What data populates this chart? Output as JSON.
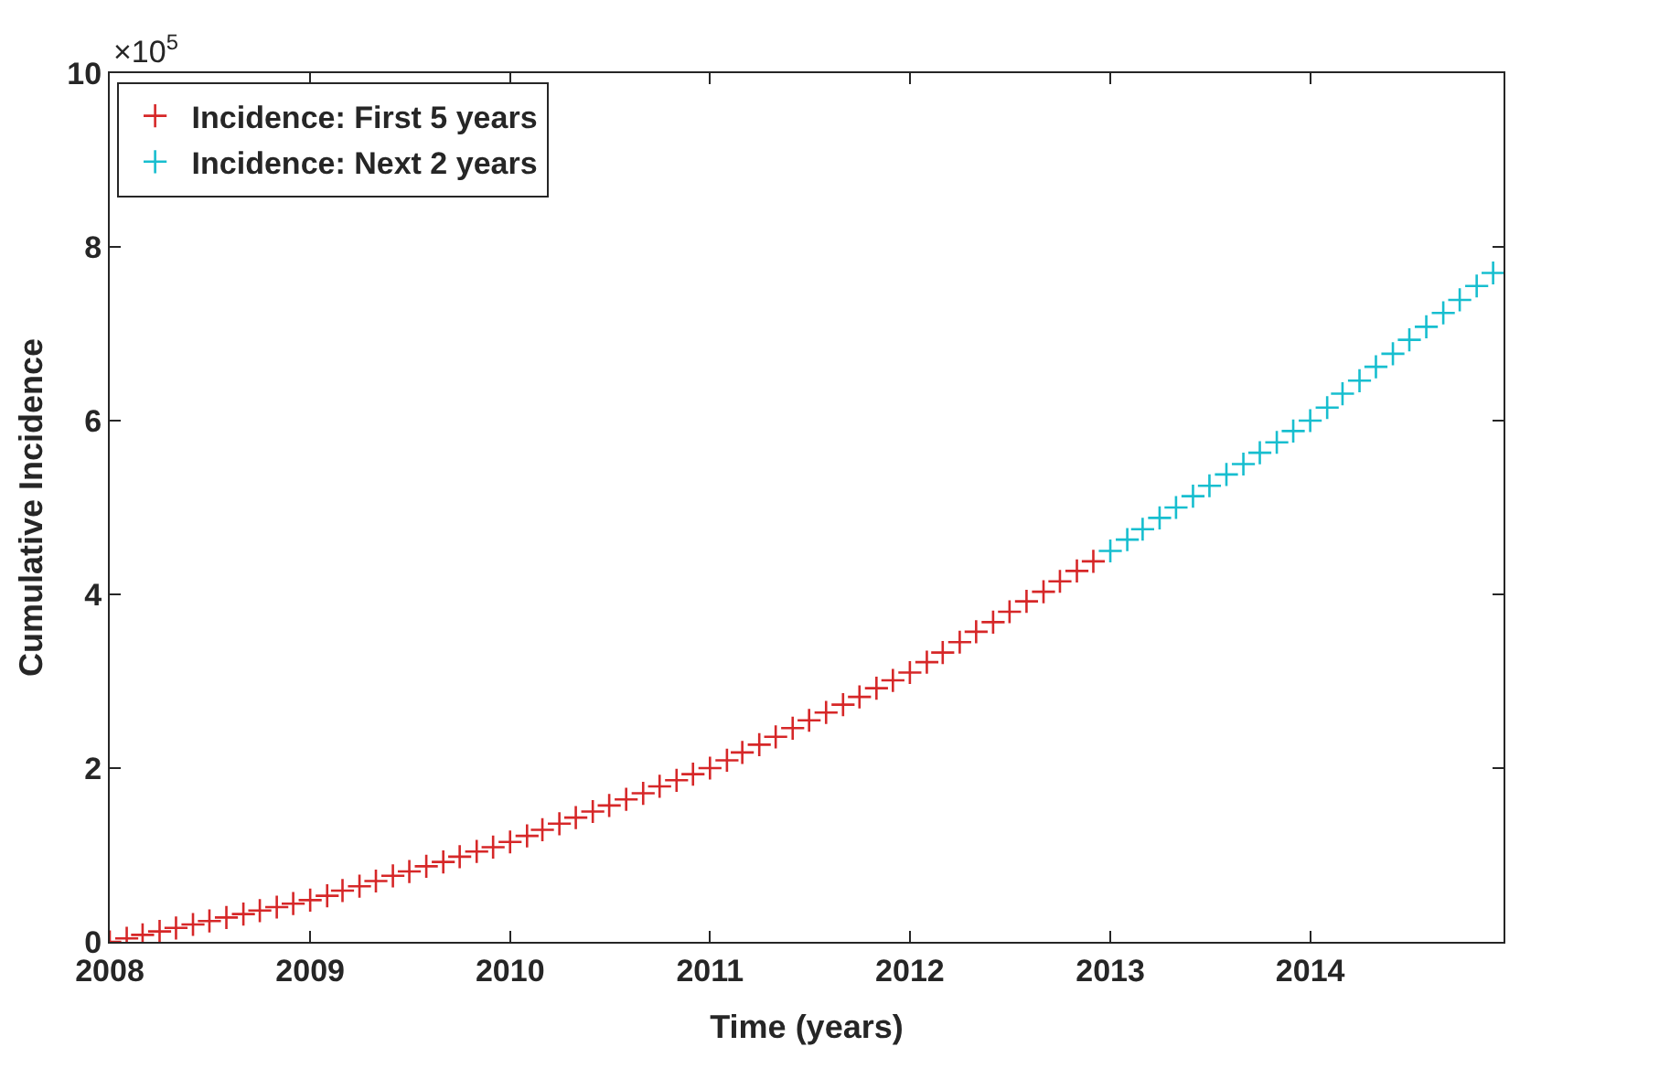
{
  "chart_data": {
    "type": "scatter",
    "xlabel": "Time (years)",
    "ylabel": "Cumulative Incidence",
    "marker": "cross",
    "legend": "top left",
    "annotations": [
      "×10$^{5}$"
    ],
    "xlim": [
      "2008-01-01",
      "2014-12-20"
    ],
    "xticks": [
      {
        "value": "2008-01-01",
        "label": "2008"
      },
      {
        "value": "2009-01-01",
        "label": "2009"
      },
      {
        "value": "2010-01-01",
        "label": "2010"
      },
      {
        "value": "2011-01-01",
        "label": "2011"
      },
      {
        "value": "2012-01-01",
        "label": "2012"
      },
      {
        "value": "2013-01-01",
        "label": "2013"
      },
      {
        "value": "2014-01-01",
        "label": "2014"
      }
    ],
    "ylim": [
      0,
      10
    ],
    "yticks": [
      0,
      2,
      4,
      6,
      8,
      10
    ],
    "series": [
      {
        "name": "Incidence: First 5 years",
        "color": "#d62728",
        "x": [
          "2008-01",
          "2008-02",
          "2008-03",
          "2008-04",
          "2008-05",
          "2008-06",
          "2008-07",
          "2008-08",
          "2008-09",
          "2008-10",
          "2008-11",
          "2008-12",
          "2009-01",
          "2009-02",
          "2009-03",
          "2009-04",
          "2009-05",
          "2009-06",
          "2009-07",
          "2009-08",
          "2009-09",
          "2009-10",
          "2009-11",
          "2009-12",
          "2010-01",
          "2010-02",
          "2010-03",
          "2010-04",
          "2010-05",
          "2010-06",
          "2010-07",
          "2010-08",
          "2010-09",
          "2010-10",
          "2010-11",
          "2010-12",
          "2011-01",
          "2011-02",
          "2011-03",
          "2011-04",
          "2011-05",
          "2011-06",
          "2011-07",
          "2011-08",
          "2011-09",
          "2011-10",
          "2011-11",
          "2011-12",
          "2012-01",
          "2012-02",
          "2012-03",
          "2012-04",
          "2012-05",
          "2012-06",
          "2012-07",
          "2012-08",
          "2012-09",
          "2012-10",
          "2012-11",
          "2012-12"
        ],
        "values": [
          0,
          0.04,
          0.08,
          0.12,
          0.16,
          0.2,
          0.24,
          0.28,
          0.32,
          0.36,
          0.4,
          0.44,
          0.48,
          0.53,
          0.59,
          0.64,
          0.7,
          0.76,
          0.81,
          0.87,
          0.92,
          0.98,
          1.04,
          1.09,
          1.15,
          1.22,
          1.29,
          1.36,
          1.43,
          1.5,
          1.57,
          1.64,
          1.71,
          1.79,
          1.86,
          1.93,
          2.0,
          2.09,
          2.18,
          2.27,
          2.36,
          2.46,
          2.55,
          2.64,
          2.73,
          2.82,
          2.92,
          3.01,
          3.1,
          3.22,
          3.33,
          3.45,
          3.57,
          3.68,
          3.8,
          3.92,
          4.03,
          4.15,
          4.27,
          4.38
        ]
      },
      {
        "name": "Incidence: Next 2 years",
        "color": "#17becf",
        "x": [
          "2013-01",
          "2013-02",
          "2013-03",
          "2013-04",
          "2013-05",
          "2013-06",
          "2013-07",
          "2013-08",
          "2013-09",
          "2013-10",
          "2013-11",
          "2013-12",
          "2014-01",
          "2014-02",
          "2014-03",
          "2014-04",
          "2014-05",
          "2014-06",
          "2014-07",
          "2014-08",
          "2014-09",
          "2014-10",
          "2014-11",
          "2014-12"
        ],
        "values": [
          4.5,
          4.63,
          4.75,
          4.88,
          5.0,
          5.13,
          5.25,
          5.38,
          5.5,
          5.63,
          5.75,
          5.88,
          6.0,
          6.15,
          6.31,
          6.46,
          6.62,
          6.77,
          6.93,
          7.08,
          7.24,
          7.39,
          7.55,
          7.7
        ]
      }
    ]
  }
}
